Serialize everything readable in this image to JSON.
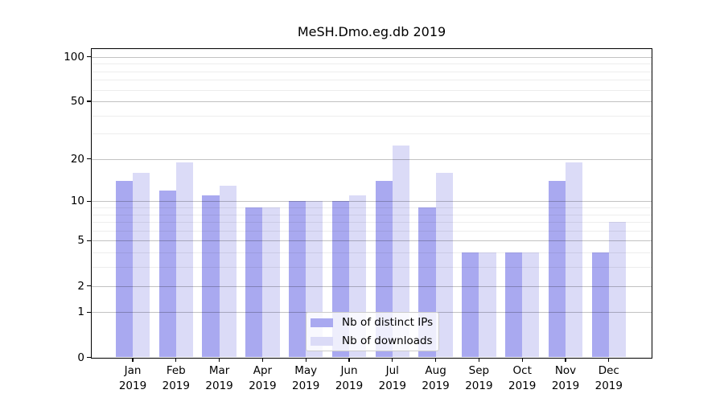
{
  "chart_data": {
    "type": "bar",
    "title": "MeSH.Dmo.eg.db 2019",
    "categories": [
      "Jan",
      "Feb",
      "Mar",
      "Apr",
      "May",
      "Jun",
      "Jul",
      "Aug",
      "Sep",
      "Oct",
      "Nov",
      "Dec"
    ],
    "category_year": "2019",
    "series": [
      {
        "name": "Nb of distinct IPs",
        "color": "#a9a9f0",
        "values": [
          14,
          12,
          11,
          9,
          10,
          10,
          14,
          9,
          4,
          4,
          14,
          4
        ]
      },
      {
        "name": "Nb of downloads",
        "color": "#dbdbf7",
        "values": [
          16,
          19,
          13,
          9,
          10,
          11,
          25,
          16,
          4,
          4,
          19,
          7
        ]
      }
    ],
    "yscale": "log1p",
    "ylim": [
      0,
      113.5
    ],
    "y_ticks": [
      100,
      50,
      20,
      10,
      5,
      2,
      1,
      0
    ],
    "y_minor_ticks": [
      3,
      4,
      6,
      7,
      8,
      9,
      30,
      40,
      60,
      70,
      80,
      90
    ],
    "grid": true,
    "legend_position": "bottom-center"
  }
}
